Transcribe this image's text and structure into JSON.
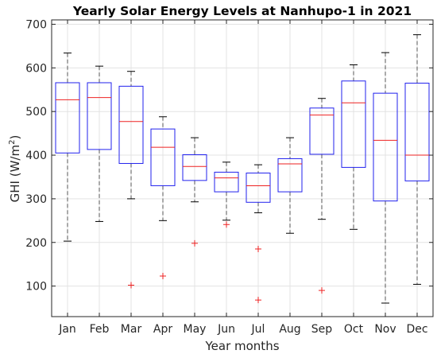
{
  "chart_data": {
    "type": "boxplot",
    "title": "Yearly Solar Energy Levels at Nanhupo-1 in 2021",
    "xlabel": "Year months",
    "ylabel": "GHI (W/m",
    "ylabel_sup": "2",
    "ylabel_close": ")",
    "ylim": [
      30,
      710
    ],
    "yticks": [
      100,
      200,
      300,
      400,
      500,
      600,
      700
    ],
    "grid": true,
    "colors": {
      "box": "#2222ee",
      "median": "#ee2222",
      "whisker": "#555555",
      "outlier": "#ee2222",
      "axis": "#262626",
      "grid": "#e3e3e3"
    },
    "categories": [
      "Jan",
      "Feb",
      "Mar",
      "Apr",
      "May",
      "Jun",
      "Jul",
      "Aug",
      "Sep",
      "Oct",
      "Nov",
      "Dec"
    ],
    "boxes": [
      {
        "month": "Jan",
        "whisker_low": 203,
        "q1": 405,
        "median": 527,
        "q3": 566,
        "whisker_high": 634,
        "outliers": []
      },
      {
        "month": "Feb",
        "whisker_low": 248,
        "q1": 413,
        "median": 532,
        "q3": 566,
        "whisker_high": 604,
        "outliers": []
      },
      {
        "month": "Mar",
        "whisker_low": 300,
        "q1": 381,
        "median": 477,
        "q3": 558,
        "whisker_high": 592,
        "outliers": [
          102
        ]
      },
      {
        "month": "Apr",
        "whisker_low": 250,
        "q1": 330,
        "median": 418,
        "q3": 460,
        "whisker_high": 488,
        "outliers": [
          123
        ]
      },
      {
        "month": "May",
        "whisker_low": 293,
        "q1": 342,
        "median": 374,
        "q3": 401,
        "whisker_high": 440,
        "outliers": [
          198
        ]
      },
      {
        "month": "Jun",
        "whisker_low": 251,
        "q1": 316,
        "median": 348,
        "q3": 361,
        "whisker_high": 384,
        "outliers": [
          241
        ]
      },
      {
        "month": "Jul",
        "whisker_low": 268,
        "q1": 292,
        "median": 330,
        "q3": 359,
        "whisker_high": 378,
        "outliers": [
          185,
          68
        ]
      },
      {
        "month": "Aug",
        "whisker_low": 221,
        "q1": 316,
        "median": 380,
        "q3": 392,
        "whisker_high": 440,
        "outliers": []
      },
      {
        "month": "Sep",
        "whisker_low": 253,
        "q1": 402,
        "median": 492,
        "q3": 508,
        "whisker_high": 530,
        "outliers": [
          90
        ]
      },
      {
        "month": "Oct",
        "whisker_low": 230,
        "q1": 372,
        "median": 520,
        "q3": 570,
        "whisker_high": 607,
        "outliers": []
      },
      {
        "month": "Nov",
        "whisker_low": 61,
        "q1": 295,
        "median": 434,
        "q3": 542,
        "whisker_high": 635,
        "outliers": []
      },
      {
        "month": "Dec",
        "whisker_low": 104,
        "q1": 341,
        "median": 400,
        "q3": 565,
        "whisker_high": 676,
        "outliers": []
      }
    ]
  }
}
